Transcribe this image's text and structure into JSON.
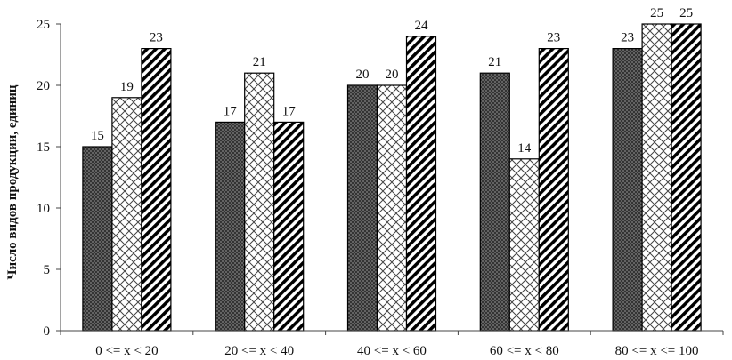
{
  "chart_data": {
    "type": "bar",
    "title": "",
    "xlabel": "",
    "ylabel": "Число видов продукции, единиц",
    "ylim": [
      0,
      25
    ],
    "yticks": [
      0,
      5,
      10,
      15,
      20,
      25
    ],
    "grid": false,
    "legend": "none",
    "categories": [
      "0 <= x < 20",
      "20 <= x < 40",
      "40 <= x < 60",
      "60 <= x < 80",
      "80 <= x <= 100"
    ],
    "series": [
      {
        "pattern": "dense-crosshatch",
        "color": "#1a1a1a",
        "values": [
          15,
          17,
          20,
          21,
          23
        ]
      },
      {
        "pattern": "light-diamond",
        "color": "#ffffff",
        "values": [
          19,
          21,
          20,
          14,
          25
        ]
      },
      {
        "pattern": "diagonal-stripes",
        "color": "#000000",
        "values": [
          23,
          17,
          24,
          23,
          25
        ]
      }
    ]
  }
}
